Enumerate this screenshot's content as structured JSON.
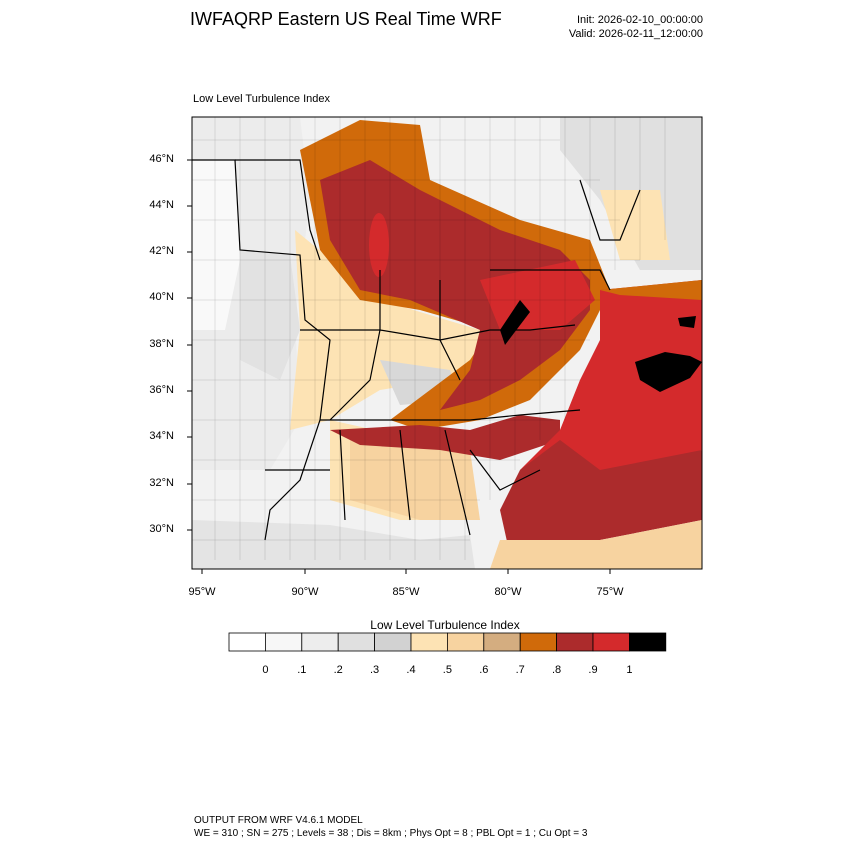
{
  "header": {
    "title": "IWFAQRP Eastern US Real Time WRF",
    "init": "Init: 2026-02-10_00:00:00",
    "valid": "Valid: 2026-02-11_12:00:00"
  },
  "map": {
    "subtitle": "Low Level Turbulence Index",
    "lat_labels": [
      "46°N",
      "44°N",
      "42°N",
      "40°N",
      "38°N",
      "36°N",
      "34°N",
      "32°N",
      "30°N"
    ],
    "lon_labels": [
      "95°W",
      "90°W",
      "85°W",
      "80°W",
      "75°W"
    ]
  },
  "colorbar": {
    "title": "Low Level Turbulence Index",
    "labels": [
      "0",
      ".1",
      ".2",
      ".3",
      ".4",
      ".5",
      ".6",
      ".7",
      ".8",
      ".9",
      "1"
    ],
    "colors": [
      "#ffffff",
      "#f7f7f7",
      "#ededed",
      "#e0e0e0",
      "#d2d2d2",
      "#fde3b4",
      "#f7d3a0",
      "#d4ad80",
      "#d06a0a",
      "#ac2b2c",
      "#d42a2c",
      "#000000"
    ]
  },
  "footer": {
    "line1": "OUTPUT FROM WRF V4.6.1 MODEL",
    "line2": "WE = 310 ; SN = 275 ; Levels = 38 ; Dis = 8km ; Phys Opt = 8 ; PBL Opt = 1 ; Cu Opt = 3"
  }
}
